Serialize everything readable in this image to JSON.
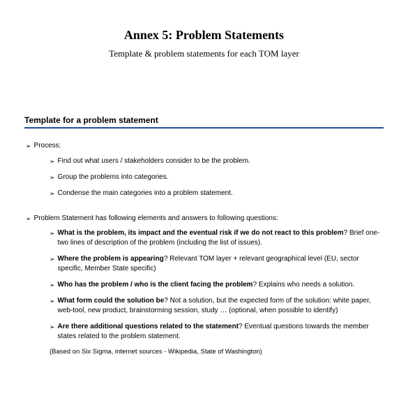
{
  "colors": {
    "background": "#ffffff",
    "text": "#000000",
    "rule": "#1f4e9c"
  },
  "typography": {
    "title_family": "Georgia, 'Times New Roman', serif",
    "body_family": "Arial, Helvetica, sans-serif",
    "title_size_pt": 18,
    "subtitle_size_pt": 13,
    "section_heading_size_pt": 12,
    "body_size_pt": 10
  },
  "title": "Annex 5: Problem Statements",
  "subtitle": "Template & problem statements for each TOM layer",
  "section_heading": "Template for a problem statement",
  "block1": {
    "label": "Process:",
    "items": [
      "Find out what users / stakeholders consider to be the problem.",
      "Group the problems into categories.",
      "Condense the main categories into a problem statement."
    ]
  },
  "block2": {
    "label": "Problem Statement has following elements and answers to following questions:",
    "items": [
      {
        "bold": "What is the problem, its impact and the eventual risk if we do not react to this problem",
        "rest": "? Brief one-two lines of description of the problem (including the list of issues)."
      },
      {
        "bold": "Where the problem is appearing",
        "rest": "? Relevant TOM layer + relevant geographical level (EU, sector specific, Member State specific)"
      },
      {
        "bold": "Who has the problem / who is the client facing the problem",
        "rest": "? Explains who needs a solution."
      },
      {
        "bold": "What form could the solution be",
        "rest": "? Not a solution, but the expected form of the solution: white paper, web-tool, new product, brainstorming session, study … (optional, when possible to identify)"
      },
      {
        "bold": "Are there additional questions related to the statement",
        "rest": "? Eventual questions towards the member states related to the problem statement."
      }
    ]
  },
  "footnote": "(Based on Six Sigma, internet sources - Wikipedia, State of Washington)"
}
